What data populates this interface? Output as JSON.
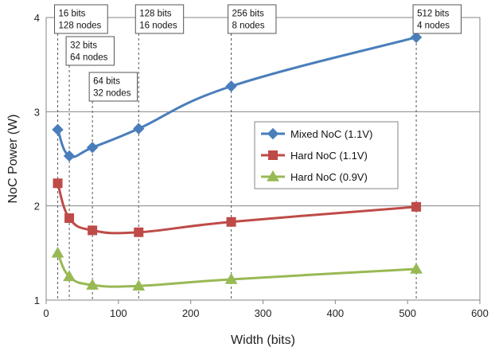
{
  "chart_data": {
    "type": "line",
    "xlabel": "Width (bits)",
    "ylabel": "NoC Power (W)",
    "xlim": [
      0,
      600
    ],
    "ylim": [
      1,
      4
    ],
    "x_ticks": [
      0,
      100,
      200,
      300,
      400,
      500,
      600
    ],
    "y_ticks": [
      1,
      2,
      3,
      4
    ],
    "grid": "horizontal",
    "legend_position": "center-right",
    "x": [
      16,
      32,
      64,
      128,
      256,
      512
    ],
    "series": [
      {
        "name": "Mixed NoC (1.1V)",
        "color": "#4a7ebb",
        "marker": "diamond",
        "values": [
          2.81,
          2.53,
          2.62,
          2.82,
          3.27,
          3.79
        ]
      },
      {
        "name": "Hard NoC (1.1V)",
        "color": "#be4b48",
        "marker": "square",
        "values": [
          2.24,
          1.87,
          1.74,
          1.72,
          1.83,
          1.99
        ]
      },
      {
        "name": "Hard NoC (0.9V)",
        "color": "#98b954",
        "marker": "triangle",
        "values": [
          1.5,
          1.25,
          1.16,
          1.15,
          1.22,
          1.33
        ]
      }
    ],
    "annotations": [
      {
        "x": 16,
        "lines": [
          "16 bits",
          "128 nodes"
        ]
      },
      {
        "x": 32,
        "lines": [
          "32 bits",
          "64 nodes"
        ]
      },
      {
        "x": 64,
        "lines": [
          "64 bits",
          "32 nodes"
        ]
      },
      {
        "x": 128,
        "lines": [
          "128 bits",
          "16 nodes"
        ]
      },
      {
        "x": 256,
        "lines": [
          "256 bits",
          "8 nodes"
        ]
      },
      {
        "x": 512,
        "lines": [
          "512 bits",
          "4 nodes"
        ]
      }
    ]
  }
}
